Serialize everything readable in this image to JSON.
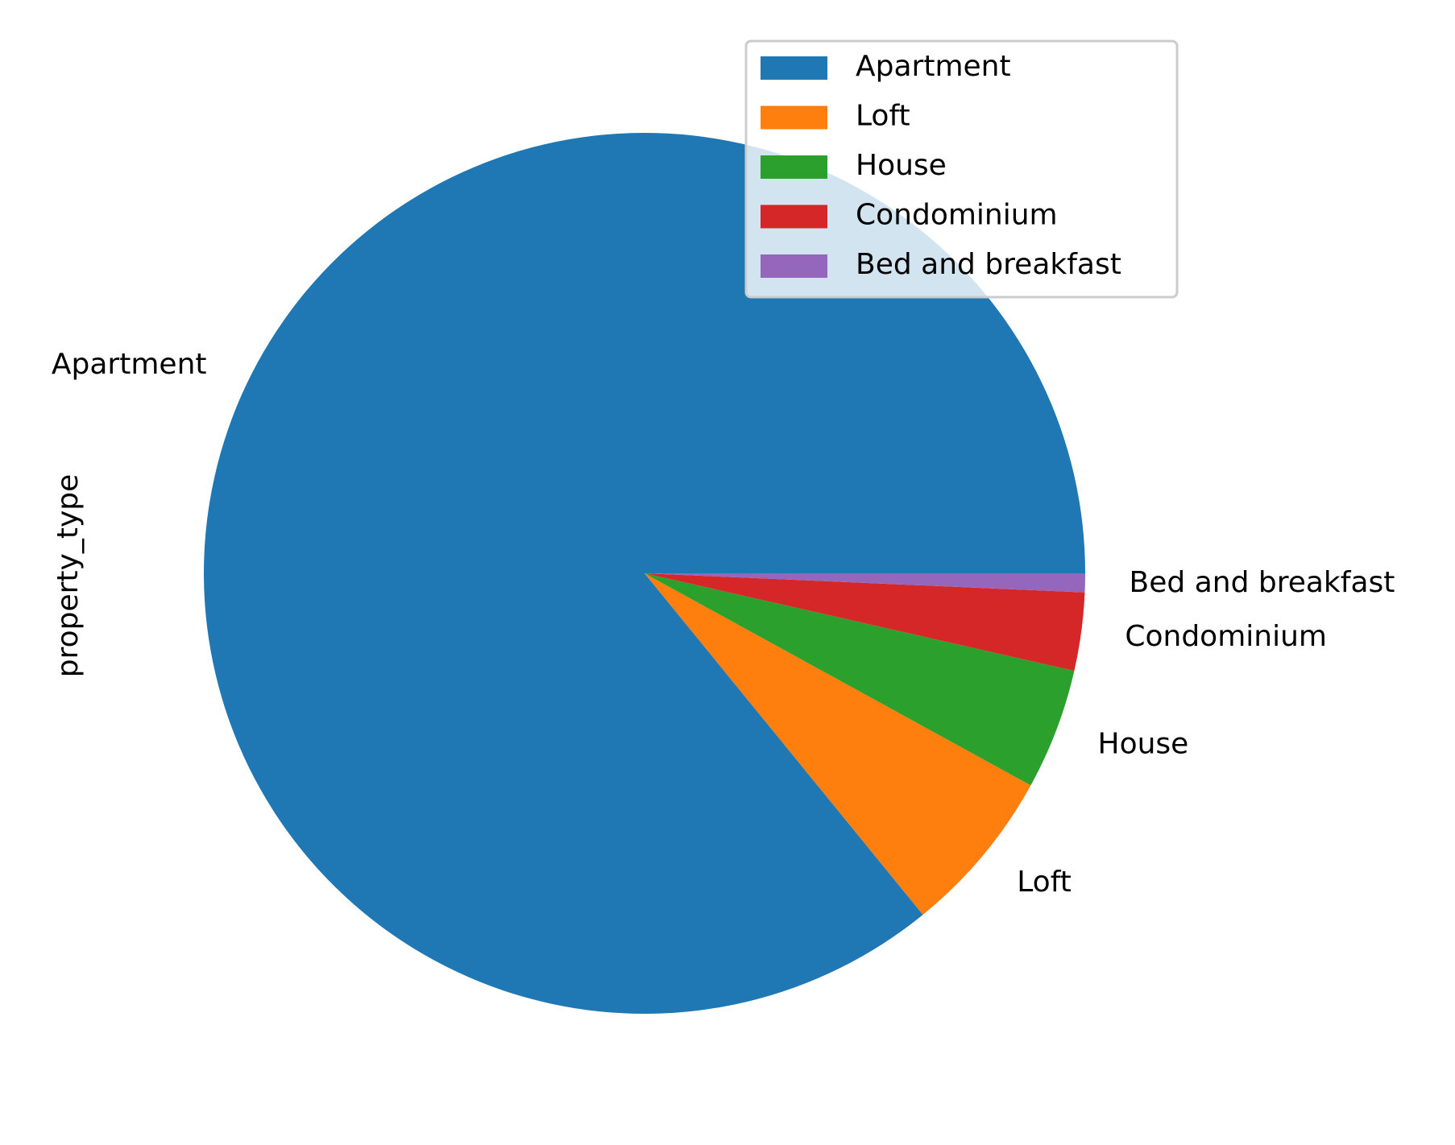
{
  "chart_data": {
    "type": "pie",
    "ylabel": "property_type",
    "start_angle_deg": 0,
    "direction": "counterclockwise",
    "categories": [
      "Apartment",
      "Loft",
      "House",
      "Condominium",
      "Bed and breakfast"
    ],
    "values": [
      87.0,
      6.2,
      4.5,
      2.9,
      0.7
    ],
    "colors": [
      "#1f77b4",
      "#ff7f0e",
      "#2ca02c",
      "#d62728",
      "#9467bd"
    ],
    "legend": {
      "location": "upper-right",
      "entries": [
        "Apartment",
        "Loft",
        "House",
        "Condominium",
        "Bed and breakfast"
      ]
    }
  }
}
